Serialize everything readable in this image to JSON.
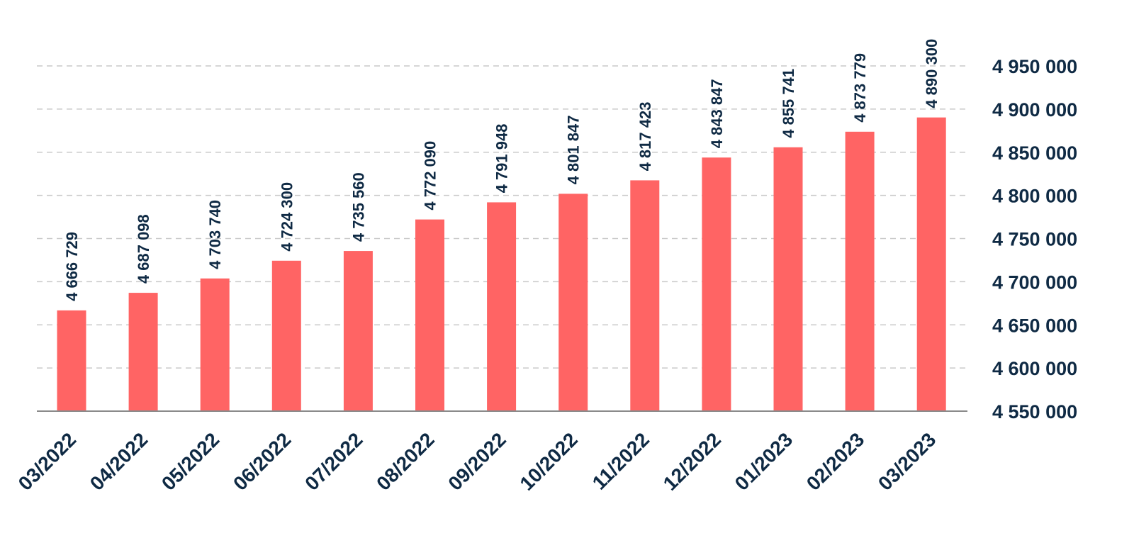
{
  "chart_data": {
    "type": "bar",
    "title": "",
    "xlabel": "",
    "ylabel": "",
    "categories": [
      "03/2022",
      "04/2022",
      "05/2022",
      "06/2022",
      "07/2022",
      "08/2022",
      "09/2022",
      "10/2022",
      "11/2022",
      "12/2022",
      "01/2023",
      "02/2023",
      "03/2023"
    ],
    "values": [
      4666729,
      4687098,
      4703740,
      4724300,
      4735560,
      4772090,
      4791948,
      4801847,
      4817423,
      4843847,
      4855741,
      4873779,
      4890300
    ],
    "value_labels": [
      "4 666 729",
      "4 687 098",
      "4 703 740",
      "4 724 300",
      "4 735 560",
      "4 772 090",
      "4 791 948",
      "4 801 847",
      "4 817 423",
      "4 843 847",
      "4 855 741",
      "4 873 779",
      "4 890 300"
    ],
    "y_ticks": [
      4550000,
      4600000,
      4650000,
      4700000,
      4750000,
      4800000,
      4850000,
      4900000,
      4950000
    ],
    "y_tick_labels": [
      "4 550 000",
      "4 600 000",
      "4 650 000",
      "4 700 000",
      "4 750 000",
      "4 800 000",
      "4 850 000",
      "4 900 000",
      "4 950 000"
    ],
    "ylim": [
      4550000,
      4950000
    ],
    "y_axis_side": "right",
    "grid": true,
    "legend": "none",
    "bar_color": "#ff6464"
  }
}
